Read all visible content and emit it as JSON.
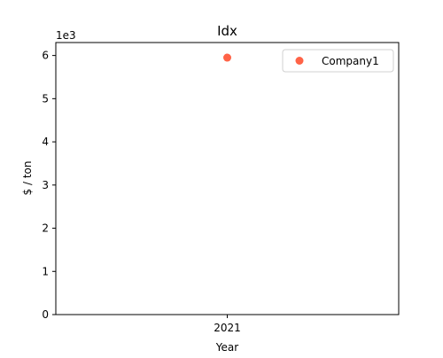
{
  "chart_data": {
    "type": "scatter",
    "title": "Idx",
    "xlabel": "Year",
    "ylabel": "$ / ton",
    "y_offset_label": "1e3",
    "x_categories": [
      "2021"
    ],
    "y_ticks": [
      "0",
      "1",
      "2",
      "3",
      "4",
      "5",
      "6"
    ],
    "ylim": [
      0,
      6.3
    ],
    "grid": false,
    "legend_position": "top-right",
    "series": [
      {
        "name": "Company1",
        "color": "#ff6347",
        "x": [
          "2021"
        ],
        "y": [
          5.95
        ]
      }
    ]
  }
}
